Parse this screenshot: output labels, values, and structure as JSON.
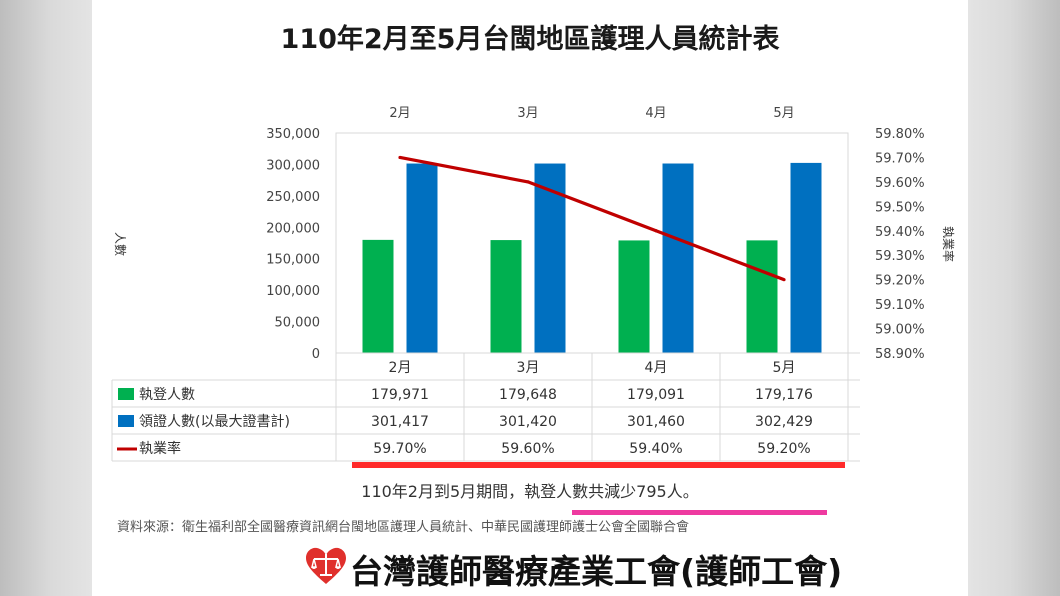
{
  "title": "110年2月至5月台閩地區護理人員統計表",
  "chart_data": {
    "type": "bar",
    "categories": [
      "2月",
      "3月",
      "4月",
      "5月"
    ],
    "series": [
      {
        "name": "執登人數",
        "type": "bar",
        "axis": "left",
        "color": "#00b050",
        "values": [
          179971,
          179648,
          179091,
          179176
        ],
        "labels": [
          "179,971",
          "179,648",
          "179,091",
          "179,176"
        ]
      },
      {
        "name": "領證人數(以最大證書計)",
        "type": "bar",
        "axis": "left",
        "color": "#0070c0",
        "values": [
          301417,
          301420,
          301460,
          302429
        ],
        "labels": [
          "301,417",
          "301,420",
          "301,460",
          "302,429"
        ]
      },
      {
        "name": "執業率",
        "type": "line",
        "axis": "right",
        "color": "#c00000",
        "values": [
          59.7,
          59.6,
          59.4,
          59.2
        ],
        "labels": [
          "59.70%",
          "59.60%",
          "59.40%",
          "59.20%"
        ]
      }
    ],
    "ylabel": "人數",
    "y2label": "執業率",
    "ylim": [
      0,
      350000
    ],
    "y2lim": [
      58.9,
      59.8
    ],
    "yticks": [
      "0",
      "50,000",
      "100,000",
      "150,000",
      "200,000",
      "250,000",
      "300,000",
      "350,000"
    ],
    "y2ticks": [
      "58.90%",
      "59.00%",
      "59.10%",
      "59.20%",
      "59.30%",
      "59.40%",
      "59.50%",
      "59.60%",
      "59.70%",
      "59.80%"
    ],
    "legend": "data-table"
  },
  "summary": "110年2月到5月期間，執登人數共減少795人。",
  "source": "資料來源：衛生福利部全國醫療資訊網台閩地區護理人員統計、中華民國護理師護士公會全國聯合會",
  "logo_text": "台灣護師醫療產業工會(護師工會)"
}
